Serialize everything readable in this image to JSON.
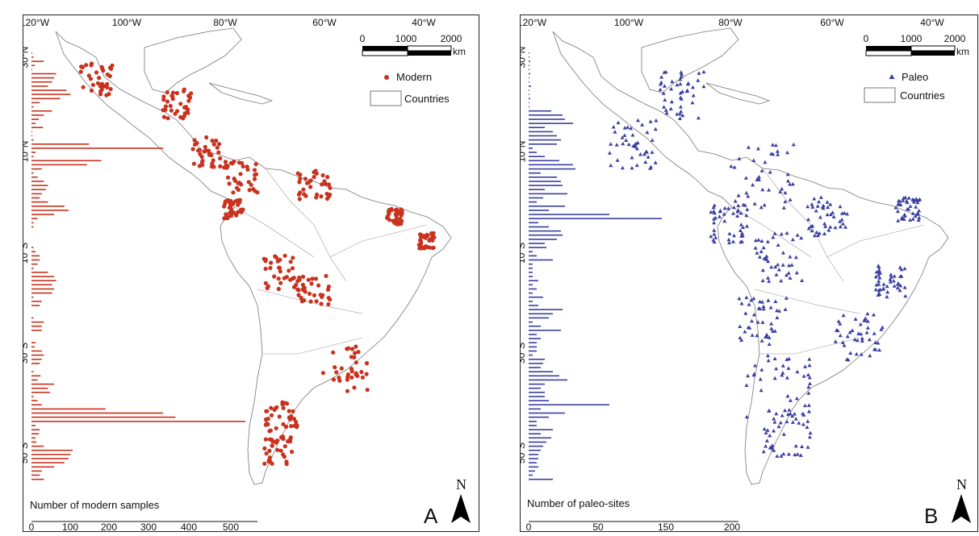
{
  "lon_labels": [
    "120°W",
    "100°W",
    "80°W",
    "60°W",
    "40°W"
  ],
  "lat_labels": [
    "30°N",
    "10°N",
    "10°S",
    "30°S",
    "50°S"
  ],
  "scalebar": {
    "labels": [
      "0",
      "1000",
      "2000"
    ],
    "unit": "km"
  },
  "north_label": "N",
  "panelA": {
    "letter": "A",
    "legend_point": "Modern",
    "legend_countries": "Countries",
    "point_color": "#c8321e",
    "histogram_title": "Number of modern samples",
    "histogram_ticks": [
      "0",
      "100",
      "200",
      "300",
      "400",
      "500"
    ],
    "histogram_values": [
      2,
      5,
      30,
      8,
      2,
      60,
      55,
      50,
      40,
      85,
      95,
      70,
      20,
      5,
      50,
      30,
      18,
      10,
      28,
      2,
      2,
      5,
      140,
      320,
      10,
      5,
      170,
      135,
      25,
      5,
      15,
      30,
      40,
      35,
      25,
      20,
      40,
      80,
      90,
      55,
      15,
      5,
      5,
      0,
      0,
      0,
      0,
      5,
      10,
      20,
      20,
      15,
      5,
      40,
      55,
      60,
      50,
      55,
      50,
      5,
      25,
      20,
      0,
      0,
      5,
      30,
      25,
      25,
      0,
      0,
      10,
      8,
      25,
      30,
      25,
      20,
      0,
      5,
      22,
      15,
      55,
      40,
      45,
      5,
      15,
      25,
      180,
      320,
      350,
      520,
      10,
      20,
      18,
      10,
      12,
      30,
      100,
      95,
      90,
      80,
      55,
      25,
      20,
      30
    ]
  },
  "panelB": {
    "letter": "B",
    "legend_point": "Paleo",
    "legend_countries": "Countries",
    "point_color": "#3a3fa0",
    "histogram_title": "Number of paleo-sites",
    "histogram_ticks": [
      "0",
      "50",
      "150",
      "200"
    ],
    "histogram_values": [
      1,
      1,
      2,
      1,
      1,
      2,
      1,
      1,
      3,
      1,
      1,
      2,
      1,
      1,
      28,
      42,
      45,
      55,
      20,
      30,
      35,
      40,
      35,
      5,
      10,
      20,
      38,
      55,
      58,
      15,
      35,
      40,
      42,
      20,
      48,
      18,
      10,
      45,
      25,
      100,
      165,
      12,
      25,
      40,
      42,
      35,
      20,
      22,
      5,
      10,
      30,
      5,
      5,
      5,
      5,
      12,
      5,
      10,
      5,
      18,
      5,
      12,
      42,
      30,
      25,
      5,
      15,
      40,
      10,
      15,
      10,
      10,
      10,
      5,
      20,
      18,
      15,
      30,
      38,
      48,
      20,
      15,
      20,
      20,
      25,
      100,
      15,
      45,
      25,
      10,
      10,
      30,
      15,
      28,
      22,
      18,
      15,
      12,
      12,
      10,
      12,
      8,
      5,
      30
    ]
  }
}
